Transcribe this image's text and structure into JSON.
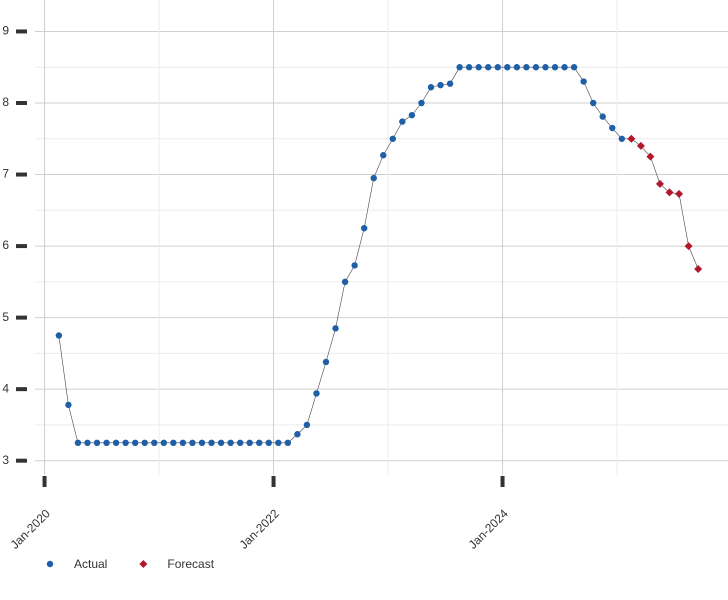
{
  "chart_data": {
    "type": "line",
    "xlim": [
      "Dec-2019",
      "Dec-2025"
    ],
    "xticks": [
      "Jan-2020",
      "Jan-2022",
      "Jan-2024"
    ],
    "ylim": [
      2.8,
      9.3
    ],
    "yticks": [
      3,
      4,
      5,
      6,
      7,
      8,
      9
    ],
    "grid": true,
    "legend": "bottom-left",
    "series": [
      {
        "name": "Actual",
        "color": "#1f5fa8",
        "marker": "circle",
        "x": [
          "Feb-2020",
          "Mar-2020",
          "Apr-2020",
          "May-2020",
          "Jun-2020",
          "Jul-2020",
          "Aug-2020",
          "Sep-2020",
          "Oct-2020",
          "Nov-2020",
          "Dec-2020",
          "Jan-2021",
          "Feb-2021",
          "Mar-2021",
          "Apr-2021",
          "May-2021",
          "Jun-2021",
          "Jul-2021",
          "Aug-2021",
          "Sep-2021",
          "Oct-2021",
          "Nov-2021",
          "Dec-2021",
          "Jan-2022",
          "Feb-2022",
          "Mar-2022",
          "Apr-2022",
          "May-2022",
          "Jun-2022",
          "Jul-2022",
          "Aug-2022",
          "Sep-2022",
          "Oct-2022",
          "Nov-2022",
          "Dec-2022",
          "Jan-2023",
          "Feb-2023",
          "Mar-2023",
          "Apr-2023",
          "May-2023",
          "Jun-2023",
          "Jul-2023",
          "Aug-2023",
          "Sep-2023",
          "Oct-2023",
          "Nov-2023",
          "Dec-2023",
          "Jan-2024",
          "Feb-2024",
          "Mar-2024",
          "Apr-2024",
          "May-2024",
          "Jun-2024",
          "Jul-2024",
          "Aug-2024",
          "Sep-2024",
          "Oct-2024",
          "Nov-2024",
          "Dec-2024",
          "Jan-2025"
        ],
        "values": [
          4.75,
          3.78,
          3.25,
          3.25,
          3.25,
          3.25,
          3.25,
          3.25,
          3.25,
          3.25,
          3.25,
          3.25,
          3.25,
          3.25,
          3.25,
          3.25,
          3.25,
          3.25,
          3.25,
          3.25,
          3.25,
          3.25,
          3.25,
          3.25,
          3.25,
          3.37,
          3.5,
          3.94,
          4.38,
          4.85,
          5.5,
          5.73,
          6.25,
          6.95,
          7.27,
          7.5,
          7.74,
          7.83,
          8.0,
          8.22,
          8.25,
          8.27,
          8.5,
          8.5,
          8.5,
          8.5,
          8.5,
          8.5,
          8.5,
          8.5,
          8.5,
          8.5,
          8.5,
          8.5,
          8.5,
          8.3,
          8.0,
          7.81,
          7.65,
          7.5
        ]
      },
      {
        "name": "Forecast",
        "color": "#b2182b",
        "marker": "diamond",
        "x": [
          "Feb-2025",
          "Mar-2025",
          "Apr-2025",
          "May-2025",
          "Jun-2025",
          "Jul-2025",
          "Aug-2025",
          "Sep-2025"
        ],
        "values": [
          7.5,
          7.4,
          7.25,
          6.87,
          6.75,
          6.73,
          6.0,
          5.68
        ]
      }
    ]
  }
}
